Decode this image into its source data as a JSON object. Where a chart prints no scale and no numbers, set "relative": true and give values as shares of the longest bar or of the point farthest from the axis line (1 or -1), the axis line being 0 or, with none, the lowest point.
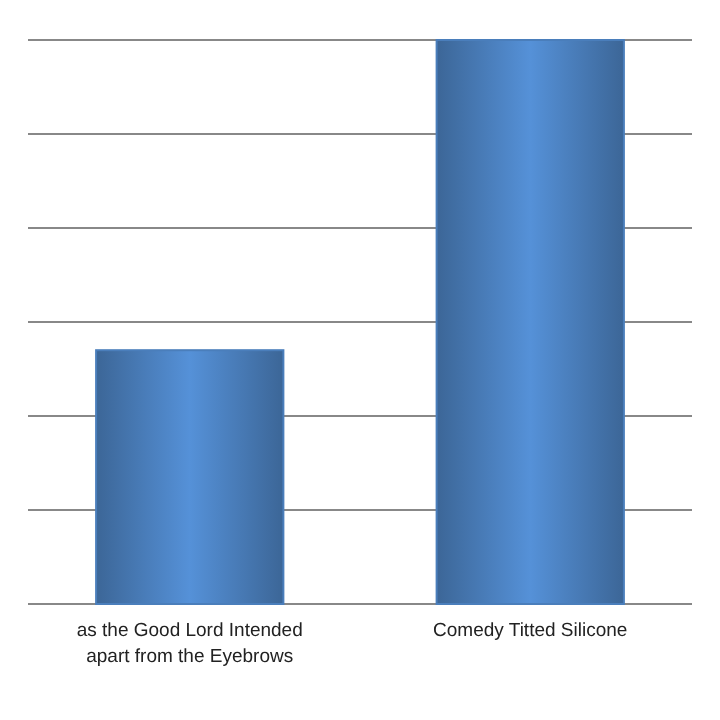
{
  "chart_data": {
    "type": "bar",
    "relative": true,
    "grid": true,
    "color": "#4a7ebb",
    "categories": [
      "as the Good Lord Intended apart from the Eyebrows",
      "Comedy Titted Silicone"
    ],
    "values": [
      0.45,
      1
    ]
  }
}
